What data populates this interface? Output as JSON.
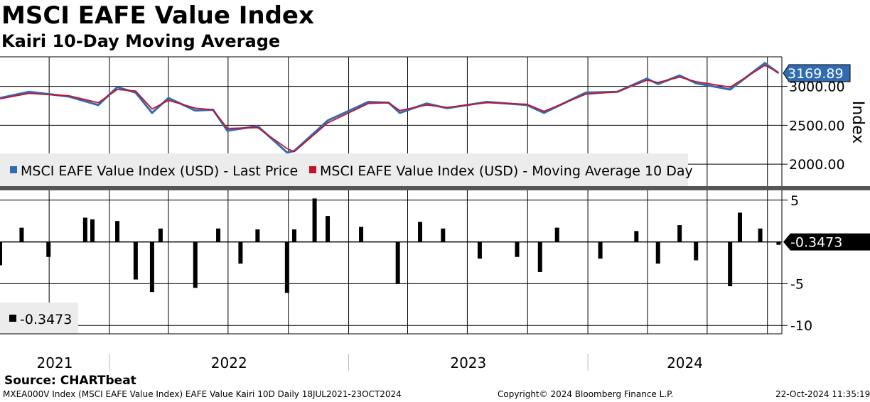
{
  "header": {
    "title": "MSCI EAFE Value Index",
    "subtitle": "Kairi 10-Day Moving Average"
  },
  "footer": {
    "source": "Source: CHARTbeat",
    "ticker_info": "MXEA000V Index (MSCI EAFE Value Index) EAFE Value Kairi 10D  Daily 18JUL2021-23OCT2024",
    "copyright": "Copyright© 2024 Bloomberg Finance L.P.",
    "timestamp": "22-Oct-2024 11:35:19"
  },
  "colors": {
    "price": "#2f6cb0",
    "moving_average": "#c8102e",
    "kairi": "#000000",
    "price_tag": "#2f6cb0"
  },
  "chart_data": [
    {
      "type": "line",
      "panel": "upper",
      "ylabel": "Index",
      "ylim": [
        1700,
        3380
      ],
      "yticks": [
        "2000.00",
        "2500.00",
        "3000.00"
      ],
      "ytick_values": [
        2000,
        2500,
        3000
      ],
      "xlim": [
        "2021-07-18",
        "2024-10-23"
      ],
      "x_axis_labels": [
        "2021",
        "2022",
        "2023",
        "2024"
      ],
      "grid": true,
      "legend_placement": "bottom-left",
      "last_value_label": "3169.89",
      "series": [
        {
          "name": "MSCI EAFE Value Index (USD) - Last Price",
          "key": "price",
          "x": [
            "2021-07-18",
            "2021-08-31",
            "2021-10-31",
            "2021-12-15",
            "2022-01-13",
            "2022-02-10",
            "2022-03-07",
            "2022-04-01",
            "2022-05-12",
            "2022-06-08",
            "2022-06-30",
            "2022-08-15",
            "2022-09-29",
            "2022-10-10",
            "2022-11-30",
            "2023-01-31",
            "2023-03-03",
            "2023-03-20",
            "2023-04-30",
            "2023-05-31",
            "2023-07-31",
            "2023-09-30",
            "2023-10-26",
            "2023-12-29",
            "2024-02-15",
            "2024-03-31",
            "2024-04-17",
            "2024-05-20",
            "2024-06-14",
            "2024-08-05",
            "2024-09-27",
            "2024-10-18"
          ],
          "y": [
            2850,
            2930,
            2870,
            2760,
            2990,
            2920,
            2660,
            2850,
            2690,
            2700,
            2430,
            2490,
            2150,
            2170,
            2560,
            2800,
            2790,
            2660,
            2780,
            2720,
            2800,
            2760,
            2660,
            2920,
            2930,
            3100,
            3030,
            3140,
            3040,
            2960,
            3300,
            3170
          ]
        },
        {
          "name": "MSCI EAFE Value Index (USD) - Moving Average 10 Day",
          "key": "ma",
          "x": [
            "2021-07-18",
            "2021-08-31",
            "2021-10-31",
            "2021-12-15",
            "2022-01-13",
            "2022-02-10",
            "2022-03-07",
            "2022-04-01",
            "2022-05-12",
            "2022-06-08",
            "2022-06-30",
            "2022-08-15",
            "2022-09-29",
            "2022-10-10",
            "2022-11-30",
            "2023-01-31",
            "2023-03-03",
            "2023-03-20",
            "2023-04-30",
            "2023-05-31",
            "2023-07-31",
            "2023-09-30",
            "2023-10-26",
            "2023-12-29",
            "2024-02-15",
            "2024-03-31",
            "2024-04-17",
            "2024-05-20",
            "2024-06-14",
            "2024-08-05",
            "2024-09-27",
            "2024-10-18"
          ],
          "y": [
            2840,
            2910,
            2880,
            2790,
            2960,
            2940,
            2710,
            2820,
            2720,
            2700,
            2460,
            2470,
            2200,
            2160,
            2530,
            2780,
            2790,
            2690,
            2760,
            2730,
            2790,
            2770,
            2680,
            2900,
            2930,
            3080,
            3050,
            3120,
            3060,
            2990,
            3270,
            3180
          ]
        }
      ]
    },
    {
      "type": "bar",
      "panel": "lower",
      "ylim": [
        -11,
        6
      ],
      "yticks": [
        "5",
        "-5",
        "-10"
      ],
      "ytick_values": [
        5,
        -5,
        -10
      ],
      "grid": true,
      "legend_placement": "bottom-left",
      "last_value_label": "-0.3473",
      "series": [
        {
          "name": "-0.3473",
          "key": "kairi",
          "x": [
            "2021-07-18",
            "2021-08-20",
            "2021-09-30",
            "2021-11-25",
            "2021-12-06",
            "2022-01-13",
            "2022-02-10",
            "2022-03-07",
            "2022-03-20",
            "2022-05-12",
            "2022-06-16",
            "2022-07-20",
            "2022-08-15",
            "2022-09-29",
            "2022-10-10",
            "2022-11-10",
            "2022-11-30",
            "2023-01-20",
            "2023-03-17",
            "2023-04-20",
            "2023-05-25",
            "2023-07-20",
            "2023-09-15",
            "2023-10-20",
            "2023-11-15",
            "2024-01-20",
            "2024-03-15",
            "2024-04-17",
            "2024-05-20",
            "2024-06-14",
            "2024-08-05",
            "2024-08-20",
            "2024-09-20",
            "2024-10-18"
          ],
          "y": [
            -2.8,
            1.7,
            -1.8,
            2.9,
            2.7,
            2.5,
            -4.5,
            -6.0,
            1.6,
            -5.5,
            1.6,
            -2.6,
            1.5,
            -6.1,
            1.5,
            5.2,
            3.1,
            1.8,
            -5.0,
            2.4,
            1.6,
            -2.0,
            -1.8,
            -3.6,
            1.7,
            -2.0,
            1.3,
            -2.6,
            2.0,
            -2.2,
            -5.3,
            3.5,
            1.6,
            -0.3473
          ]
        }
      ]
    }
  ]
}
